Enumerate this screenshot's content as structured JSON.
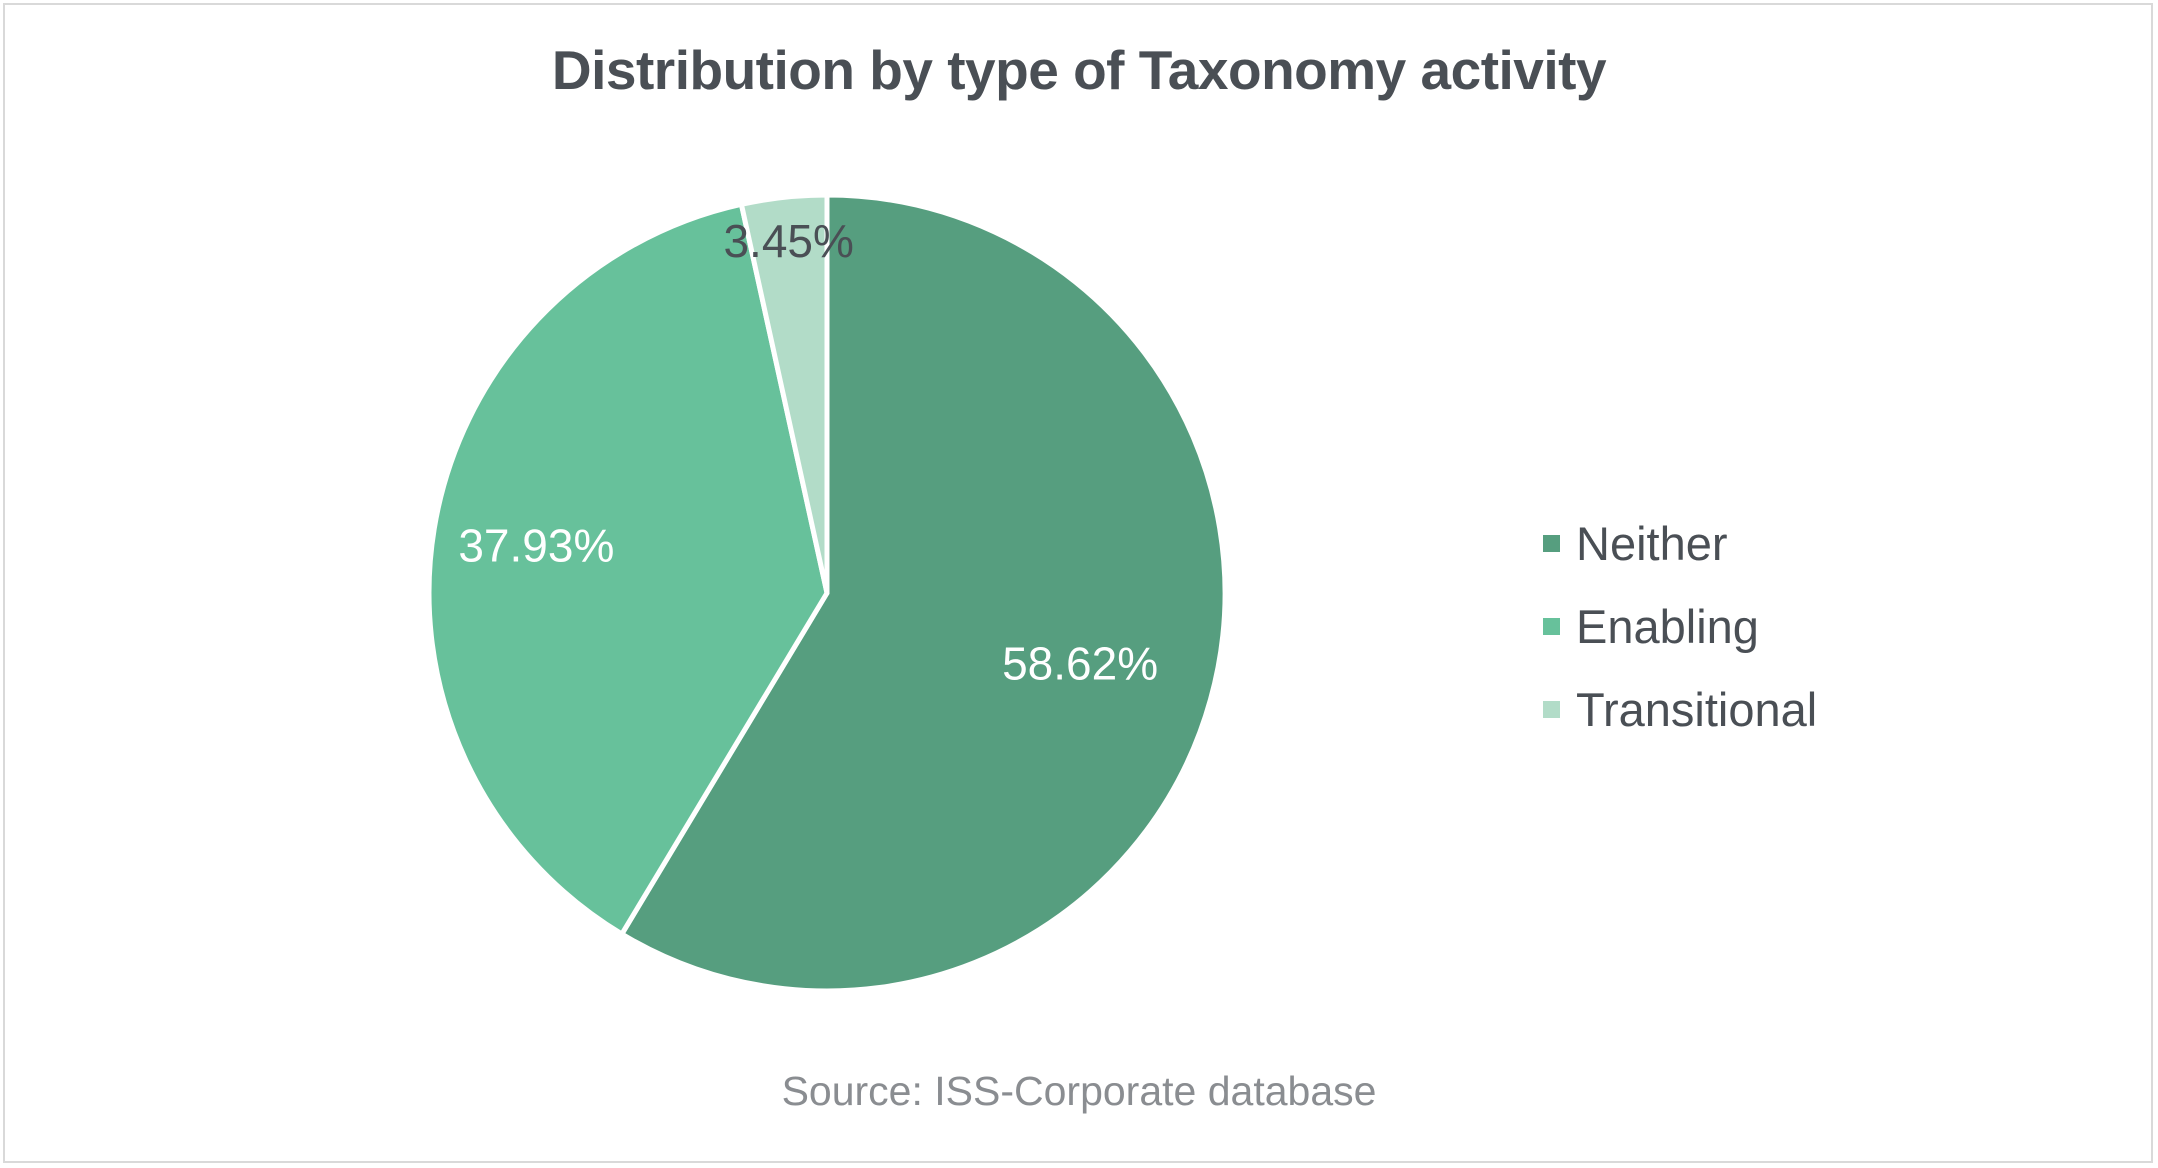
{
  "chart_data": {
    "type": "pie",
    "title": "Distribution by type of Taxonomy activity",
    "source": "Source: ISS-Corporate database",
    "categories": [
      "Neither",
      "Enabling",
      "Transitional"
    ],
    "values": [
      58.62,
      37.93,
      3.45
    ],
    "value_labels": [
      "58.62%",
      "37.93%",
      "3.45%"
    ],
    "colors": [
      "#569e7f",
      "#67c19b",
      "#b2dcc8"
    ],
    "label_colors": [
      "#ffffff",
      "#ffffff",
      "#4a4f55"
    ],
    "start": "12 o'clock, clockwise",
    "legend_position": "right"
  }
}
